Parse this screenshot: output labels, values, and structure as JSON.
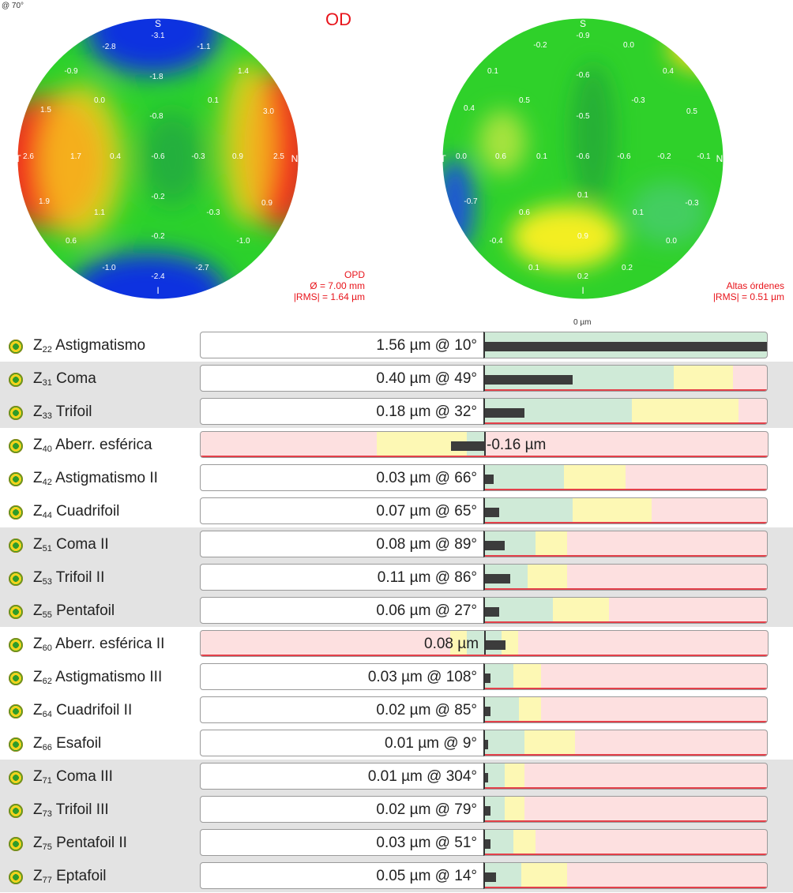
{
  "header": {
    "corner_label": "@ 70°",
    "eye": "OD",
    "axis_zero_label": "0 µm"
  },
  "map_left": {
    "marker_top": "S",
    "marker_bottom": "I",
    "marker_left": "T",
    "marker_right": "N",
    "values": [
      "-2.8",
      "-3.1",
      "-1.1",
      "-0.9",
      "-1.8",
      "1.4",
      "0.0",
      "0.1",
      "1.5",
      "-0.8",
      "3.0",
      "2.6",
      "1.7",
      "0.4",
      "-0.6",
      "-0.3",
      "0.9",
      "2.5",
      "-0.2",
      "1.9",
      "1.1",
      "-0.3",
      "0.9",
      "0.6",
      "-0.2",
      "-1.0",
      "-1.0",
      "-2.4",
      "-2.7"
    ],
    "caption_line1": "OPD",
    "caption_line2": "Ø = 7.00 mm",
    "caption_line3": "|RMS| = 1.64 µm"
  },
  "map_right": {
    "marker_top": "S",
    "marker_bottom": "I",
    "marker_left": "T",
    "marker_right": "N",
    "values": [
      "-0.2",
      "-0.9",
      "0.0",
      "0.1",
      "-0.6",
      "0.4",
      "0.4",
      "0.5",
      "-0.3",
      "-0.5",
      "0.5",
      "0.0",
      "0.6",
      "0.1",
      "-0.6",
      "-0.6",
      "-0.2",
      "-0.1",
      "0.1",
      "-0.7",
      "0.6",
      "0.1",
      "-0.3",
      "-0.4",
      "0.9",
      "0.0",
      "0.1",
      "0.2",
      "0.2"
    ],
    "caption_line1": "Altas órdenes",
    "caption_line2": "|RMS| = 0.51 µm"
  },
  "rows": [
    {
      "z": "Z",
      "idx": "22",
      "name": "Astigmatismo",
      "value": "1.56 µm @ 10°",
      "level": 1.0,
      "green": 0,
      "yellow": 0,
      "shaded": false
    },
    {
      "z": "Z",
      "idx": "31",
      "name": "Coma",
      "value": "0.40 µm @ 49°",
      "level": 0.31,
      "green": 0.67,
      "yellow": 0.88,
      "shaded": true
    },
    {
      "z": "Z",
      "idx": "33",
      "name": "Trifoil",
      "value": "0.18 µm @ 32°",
      "level": 0.14,
      "green": 0.52,
      "yellow": 0.9,
      "shaded": true
    },
    {
      "z": "Z",
      "idx": "40",
      "name": "Aberr. esférica",
      "value": "-0.16 µm",
      "level": -0.12,
      "green": 0,
      "yellow": 0,
      "shaded": false,
      "spherical": true
    },
    {
      "z": "Z",
      "idx": "42",
      "name": "Astigmatismo II",
      "value": "0.03 µm @ 66°",
      "level": 0.03,
      "green": 0.28,
      "yellow": 0.5,
      "shaded": false
    },
    {
      "z": "Z",
      "idx": "44",
      "name": "Cuadrifoil",
      "value": "0.07 µm @ 65°",
      "level": 0.05,
      "green": 0.31,
      "yellow": 0.59,
      "shaded": false
    },
    {
      "z": "Z",
      "idx": "51",
      "name": "Coma II",
      "value": "0.08 µm @ 89°",
      "level": 0.07,
      "green": 0.18,
      "yellow": 0.29,
      "shaded": true
    },
    {
      "z": "Z",
      "idx": "53",
      "name": "Trifoil II",
      "value": "0.11 µm @ 86°",
      "level": 0.09,
      "green": 0.15,
      "yellow": 0.29,
      "shaded": true
    },
    {
      "z": "Z",
      "idx": "55",
      "name": "Pentafoil",
      "value": "0.06 µm @ 27°",
      "level": 0.05,
      "green": 0.24,
      "yellow": 0.44,
      "shaded": true
    },
    {
      "z": "Z",
      "idx": "60",
      "name": "Aberr. esférica II",
      "value": "0.08 µm",
      "level": 0.07,
      "green": 0,
      "yellow": 0,
      "shaded": false,
      "spherical2": true
    },
    {
      "z": "Z",
      "idx": "62",
      "name": "Astigmatismo III",
      "value": "0.03 µm @ 108°",
      "level": 0.02,
      "green": 0.1,
      "yellow": 0.2,
      "shaded": false
    },
    {
      "z": "Z",
      "idx": "64",
      "name": "Cuadrifoil II",
      "value": "0.02 µm @ 85°",
      "level": 0.02,
      "green": 0.12,
      "yellow": 0.2,
      "shaded": false
    },
    {
      "z": "Z",
      "idx": "66",
      "name": "Esafoil",
      "value": "0.01 µm @ 9°",
      "level": 0.01,
      "green": 0.14,
      "yellow": 0.32,
      "shaded": false
    },
    {
      "z": "Z",
      "idx": "71",
      "name": "Coma III",
      "value": "0.01 µm @ 304°",
      "level": 0.01,
      "green": 0.07,
      "yellow": 0.14,
      "shaded": true
    },
    {
      "z": "Z",
      "idx": "73",
      "name": "Trifoil III",
      "value": "0.02 µm @ 79°",
      "level": 0.02,
      "green": 0.07,
      "yellow": 0.14,
      "shaded": true
    },
    {
      "z": "Z",
      "idx": "75",
      "name": "Pentafoil II",
      "value": "0.03 µm @ 51°",
      "level": 0.02,
      "green": 0.1,
      "yellow": 0.18,
      "shaded": true
    },
    {
      "z": "Z",
      "idx": "77",
      "name": "Eptafoil",
      "value": "0.05 µm @ 14°",
      "level": 0.04,
      "green": 0.13,
      "yellow": 0.29,
      "shaded": true
    }
  ]
}
